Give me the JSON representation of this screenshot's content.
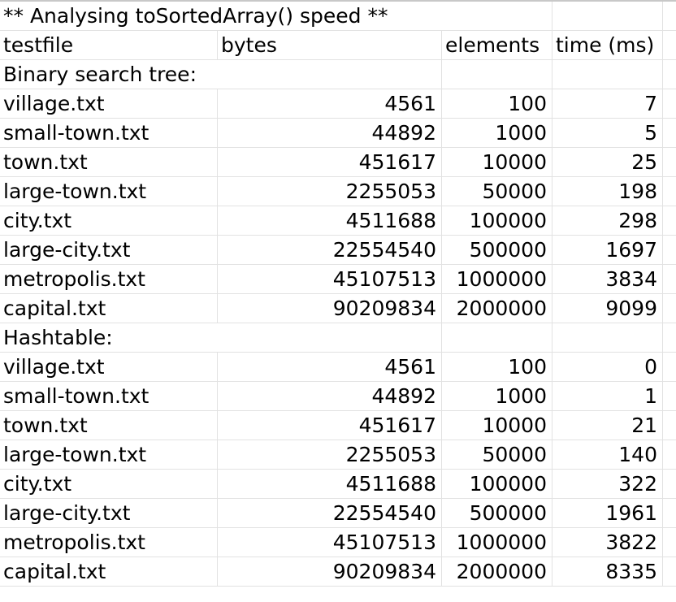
{
  "sheet": {
    "title": "** Analysing toSortedArray() speed **",
    "headers": [
      "testfile",
      "bytes",
      "elements",
      "time (ms)"
    ],
    "sections": [
      {
        "label": "Binary search tree:",
        "rows": [
          {
            "file": "village.txt",
            "bytes": "4561",
            "elements": "100",
            "time": "7"
          },
          {
            "file": "small-town.txt",
            "bytes": "44892",
            "elements": "1000",
            "time": "5"
          },
          {
            "file": "town.txt",
            "bytes": "451617",
            "elements": "10000",
            "time": "25"
          },
          {
            "file": "large-town.txt",
            "bytes": "2255053",
            "elements": "50000",
            "time": "198"
          },
          {
            "file": "city.txt",
            "bytes": "4511688",
            "elements": "100000",
            "time": "298"
          },
          {
            "file": "large-city.txt",
            "bytes": "22554540",
            "elements": "500000",
            "time": "1697"
          },
          {
            "file": "metropolis.txt",
            "bytes": "45107513",
            "elements": "1000000",
            "time": "3834"
          },
          {
            "file": "capital.txt",
            "bytes": "90209834",
            "elements": "2000000",
            "time": "9099"
          }
        ]
      },
      {
        "label": "Hashtable:",
        "rows": [
          {
            "file": "village.txt",
            "bytes": "4561",
            "elements": "100",
            "time": "0"
          },
          {
            "file": "small-town.txt",
            "bytes": "44892",
            "elements": "1000",
            "time": "1"
          },
          {
            "file": "town.txt",
            "bytes": "451617",
            "elements": "10000",
            "time": "21"
          },
          {
            "file": "large-town.txt",
            "bytes": "2255053",
            "elements": "50000",
            "time": "140"
          },
          {
            "file": "city.txt",
            "bytes": "4511688",
            "elements": "100000",
            "time": "322"
          },
          {
            "file": "large-city.txt",
            "bytes": "22554540",
            "elements": "500000",
            "time": "1961"
          },
          {
            "file": "metropolis.txt",
            "bytes": "45107513",
            "elements": "1000000",
            "time": "3822"
          },
          {
            "file": "capital.txt",
            "bytes": "90209834",
            "elements": "2000000",
            "time": "8335"
          }
        ]
      }
    ]
  }
}
